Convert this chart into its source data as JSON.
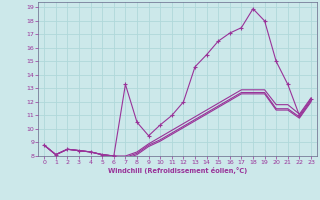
{
  "xlabel": "Windchill (Refroidissement éolien,°C)",
  "bg_color": "#cce8ea",
  "line_color": "#993399",
  "grid_color": "#b0d8da",
  "xlim": [
    -0.5,
    23.5
  ],
  "ylim": [
    8,
    19.4
  ],
  "xticks": [
    0,
    1,
    2,
    3,
    4,
    5,
    6,
    7,
    8,
    9,
    10,
    11,
    12,
    13,
    14,
    15,
    16,
    17,
    18,
    19,
    20,
    21,
    22,
    23
  ],
  "yticks": [
    8,
    9,
    10,
    11,
    12,
    13,
    14,
    15,
    16,
    17,
    18,
    19
  ],
  "lines": [
    {
      "x": [
        0,
        1,
        2,
        3,
        4,
        5,
        6,
        7,
        8,
        9,
        10,
        11,
        12,
        13,
        14,
        15,
        16,
        17,
        18,
        19,
        20,
        21,
        22,
        23
      ],
      "y": [
        8.8,
        8.1,
        8.5,
        8.4,
        8.3,
        8.1,
        8.0,
        13.3,
        10.5,
        9.5,
        10.3,
        11.0,
        12.0,
        14.6,
        15.5,
        16.5,
        17.1,
        17.5,
        18.9,
        18.0,
        15.0,
        13.3,
        11.0,
        12.2
      ],
      "marker": true
    },
    {
      "x": [
        0,
        1,
        2,
        3,
        4,
        5,
        6,
        7,
        8,
        9,
        10,
        11,
        12,
        13,
        14,
        15,
        16,
        17,
        18,
        19,
        20,
        21,
        22,
        23
      ],
      "y": [
        8.8,
        8.1,
        8.5,
        8.4,
        8.3,
        8.1,
        8.0,
        8.0,
        8.3,
        8.9,
        9.4,
        9.9,
        10.4,
        10.9,
        11.4,
        11.9,
        12.4,
        12.9,
        12.9,
        12.9,
        11.8,
        11.8,
        11.1,
        12.3
      ],
      "marker": false
    },
    {
      "x": [
        0,
        1,
        2,
        3,
        4,
        5,
        6,
        7,
        8,
        9,
        10,
        11,
        12,
        13,
        14,
        15,
        16,
        17,
        18,
        19,
        20,
        21,
        22,
        23
      ],
      "y": [
        8.8,
        8.1,
        8.5,
        8.4,
        8.3,
        8.1,
        8.0,
        7.9,
        8.2,
        8.8,
        9.2,
        9.7,
        10.2,
        10.7,
        11.2,
        11.7,
        12.2,
        12.7,
        12.7,
        12.7,
        11.5,
        11.5,
        10.9,
        12.1
      ],
      "marker": false
    },
    {
      "x": [
        0,
        1,
        2,
        3,
        4,
        5,
        6,
        7,
        8,
        9,
        10,
        11,
        12,
        13,
        14,
        15,
        16,
        17,
        18,
        19,
        20,
        21,
        22,
        23
      ],
      "y": [
        8.8,
        8.1,
        8.5,
        8.4,
        8.3,
        8.1,
        8.0,
        7.8,
        8.1,
        8.7,
        9.1,
        9.6,
        10.1,
        10.6,
        11.1,
        11.6,
        12.1,
        12.6,
        12.6,
        12.6,
        11.4,
        11.4,
        10.8,
        12.0
      ],
      "marker": false
    }
  ]
}
